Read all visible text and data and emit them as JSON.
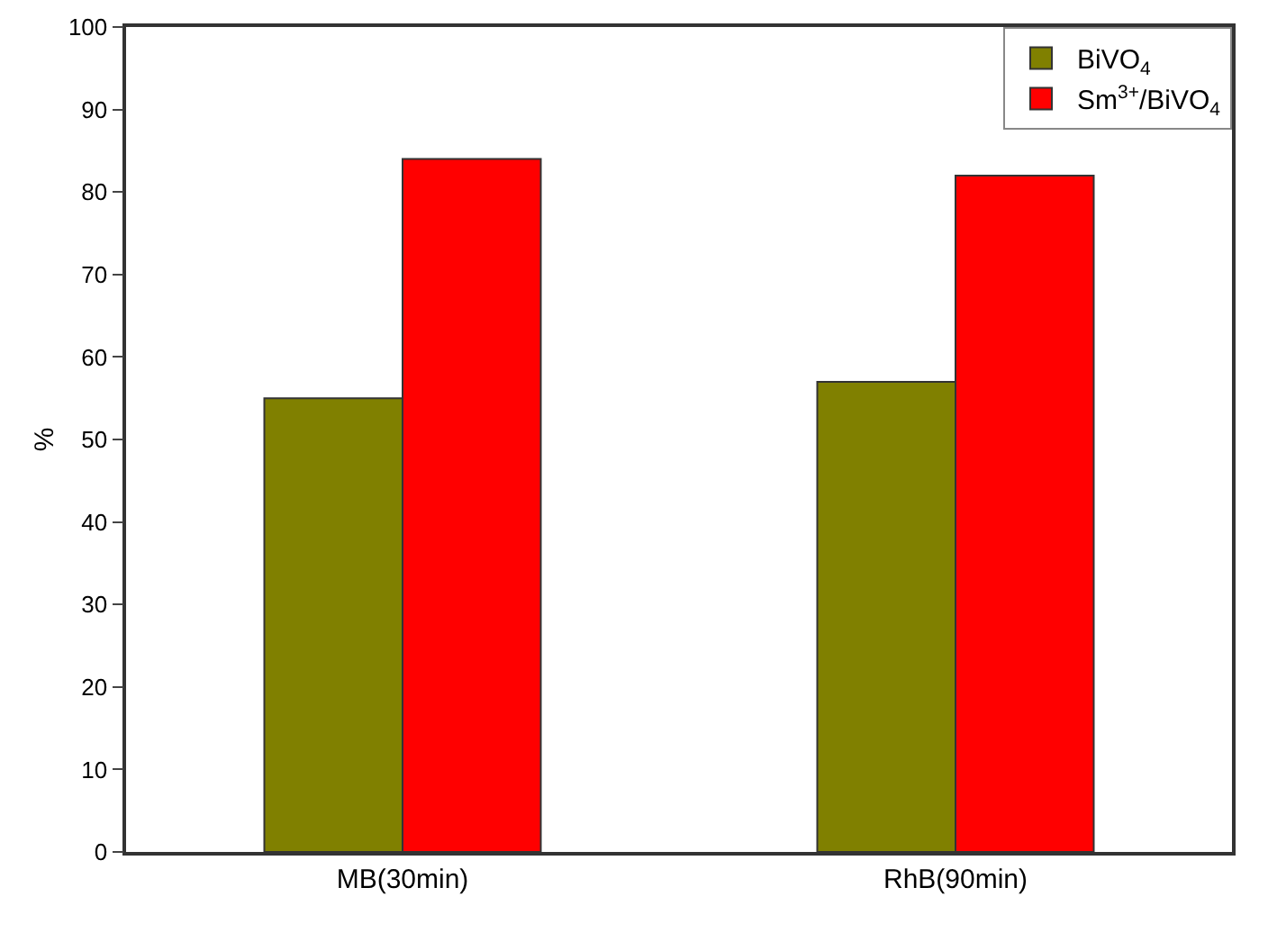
{
  "chart_data": {
    "type": "bar",
    "ylabel": "%",
    "categories": [
      "MB(30min)",
      "RhB(90min)"
    ],
    "series": [
      {
        "name": "BiVO$_{4}$",
        "color": "#808000",
        "values": [
          55,
          57
        ]
      },
      {
        "name": "Sm$^{3+}$/BiVO$_{4}$",
        "color": "#ff0000",
        "values": [
          84,
          82
        ]
      }
    ],
    "ylim": [
      0,
      100
    ],
    "yticks": [
      0,
      10,
      20,
      30,
      40,
      50,
      60,
      70,
      80,
      90,
      100
    ],
    "grid": false,
    "legend": "top right"
  }
}
